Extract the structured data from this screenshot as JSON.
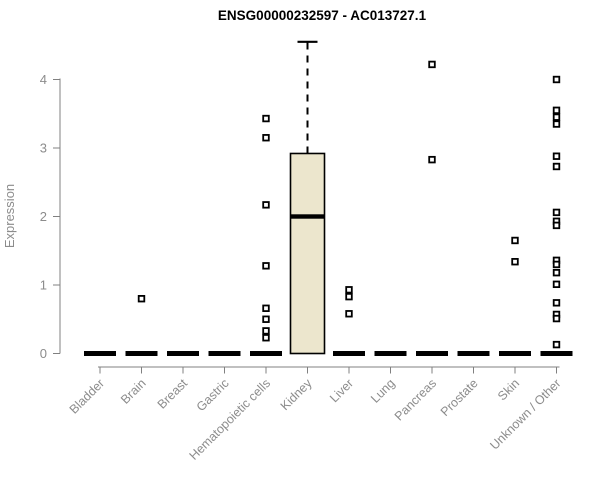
{
  "title": "ENSG00000232597 - AC013727.1",
  "colors": {
    "background": "#ffffff",
    "box_fill": "#ece6cd",
    "box_border": "#000000",
    "median": "#000000",
    "axis_line": "#808080",
    "tick_text": "#8c8c8c",
    "outlier": "#000000"
  },
  "chart_data": {
    "type": "boxplot",
    "title": "ENSG00000232597 - AC013727.1",
    "xlabel": "",
    "ylabel": "Expression",
    "ylim": [
      0,
      4.6
    ],
    "yticks": [
      "0",
      "1",
      "2",
      "3",
      "4"
    ],
    "grid": false,
    "legend": false,
    "categories": [
      "Bladder",
      "Brain",
      "Breast",
      "Gastric",
      "Hematopoietic cells",
      "Kidney",
      "Liver",
      "Lung",
      "Pancreas",
      "Prostate",
      "Skin",
      "Unknown / Other"
    ],
    "boxes": [
      {
        "category": "Bladder",
        "whisker_low": 0,
        "q1": 0,
        "median": 0,
        "q3": 0,
        "whisker_high": 0,
        "outliers": []
      },
      {
        "category": "Brain",
        "whisker_low": 0,
        "q1": 0,
        "median": 0,
        "q3": 0,
        "whisker_high": 0,
        "outliers": [
          0.8
        ]
      },
      {
        "category": "Breast",
        "whisker_low": 0,
        "q1": 0,
        "median": 0,
        "q3": 0,
        "whisker_high": 0,
        "outliers": []
      },
      {
        "category": "Gastric",
        "whisker_low": 0,
        "q1": 0,
        "median": 0,
        "q3": 0,
        "whisker_high": 0,
        "outliers": []
      },
      {
        "category": "Hematopoietic cells",
        "whisker_low": 0,
        "q1": 0,
        "median": 0,
        "q3": 0,
        "whisker_high": 0,
        "outliers": [
          3.43,
          3.15,
          2.17,
          1.28,
          0.66,
          0.5,
          0.33,
          0.23
        ]
      },
      {
        "category": "Kidney",
        "whisker_low": 0,
        "q1": 0,
        "median": 2.0,
        "q3": 2.92,
        "whisker_high": 4.55,
        "outliers": []
      },
      {
        "category": "Liver",
        "whisker_low": 0,
        "q1": 0,
        "median": 0,
        "q3": 0,
        "whisker_high": 0,
        "outliers": [
          0.93,
          0.83,
          0.58
        ]
      },
      {
        "category": "Lung",
        "whisker_low": 0,
        "q1": 0,
        "median": 0,
        "q3": 0,
        "whisker_high": 0,
        "outliers": []
      },
      {
        "category": "Pancreas",
        "whisker_low": 0,
        "q1": 0,
        "median": 0,
        "q3": 0,
        "whisker_high": 0,
        "outliers": [
          4.22,
          2.83
        ]
      },
      {
        "category": "Prostate",
        "whisker_low": 0,
        "q1": 0,
        "median": 0,
        "q3": 0,
        "whisker_high": 0,
        "outliers": []
      },
      {
        "category": "Skin",
        "whisker_low": 0,
        "q1": 0,
        "median": 0,
        "q3": 0,
        "whisker_high": 0,
        "outliers": [
          1.65,
          1.34
        ]
      },
      {
        "category": "Unknown / Other",
        "whisker_low": 0,
        "q1": 0,
        "median": 0,
        "q3": 0,
        "whisker_high": 0,
        "outliers": [
          4.0,
          3.55,
          3.45,
          3.35,
          2.88,
          2.73,
          2.06,
          1.93,
          1.87,
          1.36,
          1.3,
          1.18,
          1.01,
          0.74,
          0.57,
          0.51,
          0.13
        ]
      }
    ]
  }
}
